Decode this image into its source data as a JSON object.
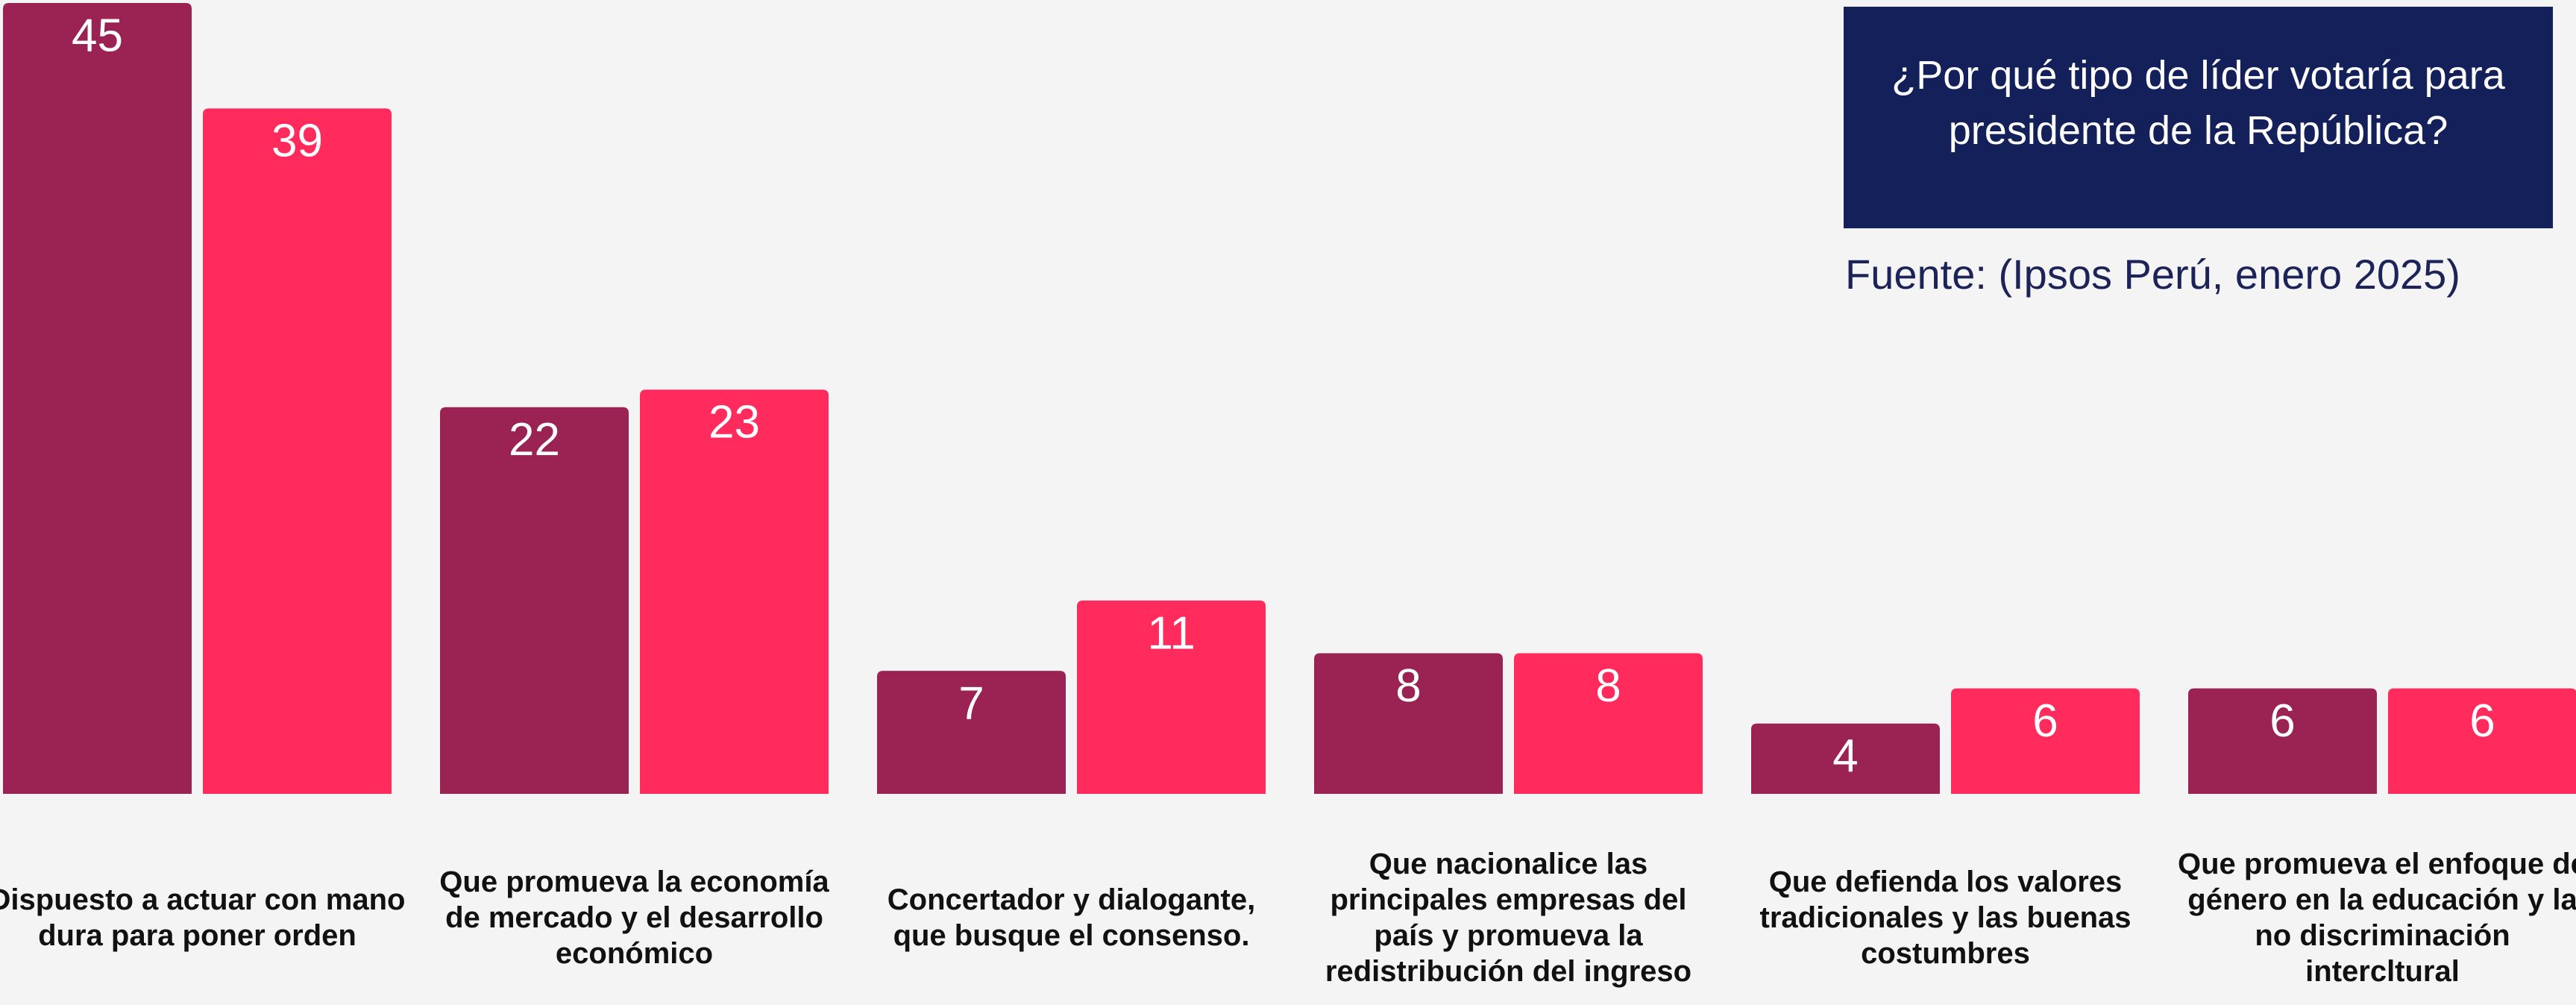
{
  "chart_data": {
    "type": "bar",
    "title": "¿Por qué tipo de líder votaría para presidente de la República?",
    "source": "Fuente: (Ipsos Perú, enero 2025)",
    "categories": [
      "Dispuesto a actuar con mano dura para poner orden",
      "Que promueva la economía de mercado y el desarrollo económico",
      "Concertador y dialogante, que busque el consenso.",
      "Que nacionalice las principales empresas del país y promueva la redistribución del ingreso",
      "Que defienda los valores tradicionales y las buenas costumbres",
      "Que promueva el enfoque de género en la educación y la no discriminación intercltural"
    ],
    "series": [
      {
        "color": "#9b2354",
        "values": [
          45,
          22,
          7,
          8,
          4,
          6
        ]
      },
      {
        "color": "#ff2b5c",
        "values": [
          39,
          23,
          11,
          8,
          6,
          6
        ]
      }
    ],
    "ylim": [
      0,
      45
    ]
  }
}
